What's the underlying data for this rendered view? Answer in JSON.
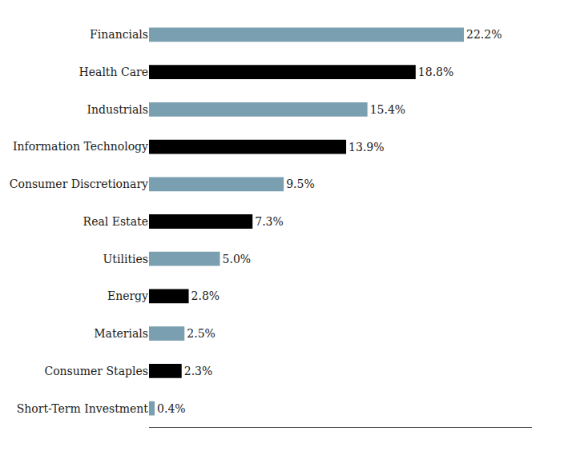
{
  "chart_data": {
    "type": "bar",
    "orientation": "horizontal",
    "categories": [
      "Short-Term Investment",
      "Consumer Staples",
      "Materials",
      "Energy",
      "Utilities",
      "Real Estate",
      "Consumer Discretionary",
      "Information Technology",
      "Industrials",
      "Health Care",
      "Financials"
    ],
    "values": [
      0.4,
      2.3,
      2.5,
      2.8,
      5.0,
      7.3,
      9.5,
      13.9,
      15.4,
      18.8,
      22.2
    ],
    "value_labels": [
      "0.4%",
      "2.3%",
      "2.5%",
      "2.8%",
      "5.0%",
      "7.3%",
      "9.5%",
      "13.9%",
      "15.4%",
      "18.8%",
      "22.2%"
    ],
    "colors": [
      "#7a9fb0",
      "#000000",
      "#7a9fb0",
      "#000000",
      "#7a9fb0",
      "#000000",
      "#7a9fb0",
      "#000000",
      "#7a9fb0",
      "#000000",
      "#7a9fb0"
    ],
    "xlim": [
      0,
      27
    ],
    "data_labels": true,
    "tick_labels": "y",
    "grid": false
  }
}
